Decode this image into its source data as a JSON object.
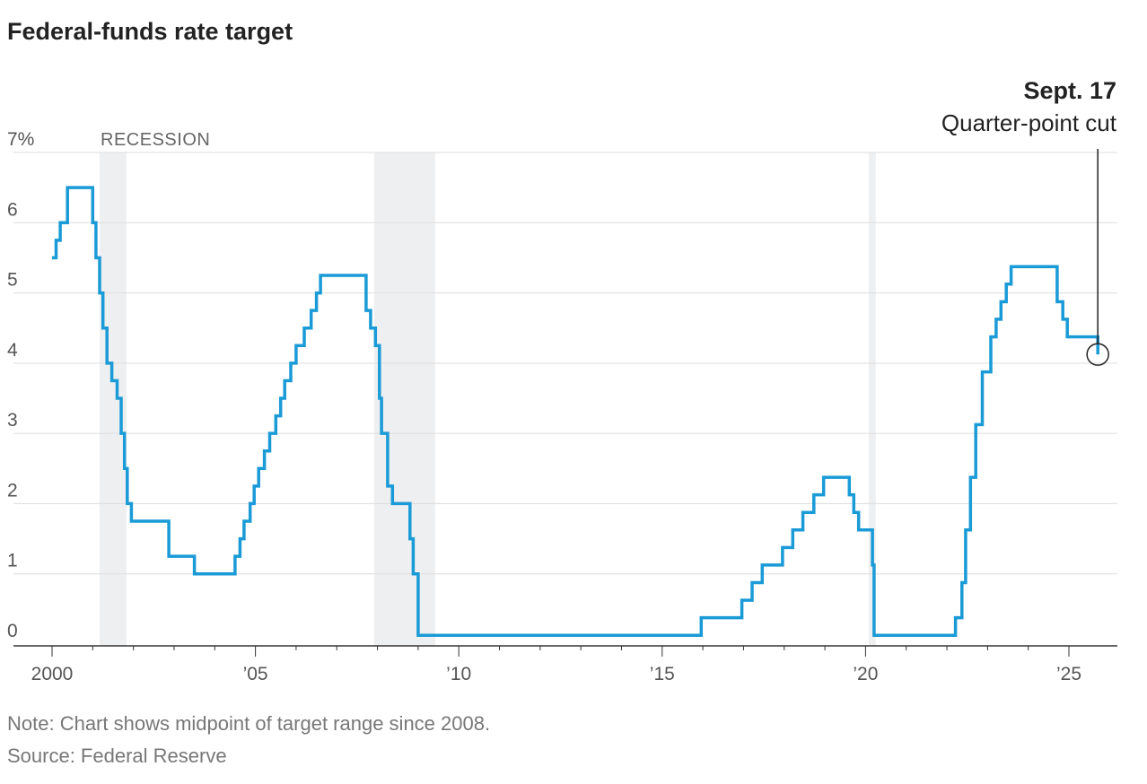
{
  "title": "Federal-funds rate target",
  "note": "Note: Chart shows midpoint of target range since 2008.",
  "source": "Source: Federal Reserve",
  "colors": {
    "line": "#1a9bd7",
    "recession": "#eeeff1",
    "grid": "#dddddd",
    "axis": "#333333"
  },
  "chart_data": {
    "type": "line",
    "step": true,
    "title": "Federal-funds rate target",
    "y_unit_label": "7%",
    "ylim": [
      0,
      7
    ],
    "xlim": [
      1999.8,
      2025.95
    ],
    "y_ticks": [
      {
        "value": 0,
        "label": "0"
      },
      {
        "value": 1,
        "label": "1"
      },
      {
        "value": 2,
        "label": "2"
      },
      {
        "value": 3,
        "label": "3"
      },
      {
        "value": 4,
        "label": "4"
      },
      {
        "value": 5,
        "label": "5"
      },
      {
        "value": 6,
        "label": "6"
      },
      {
        "value": 7,
        "label": "7%"
      }
    ],
    "x_ticks": [
      {
        "value": 2000,
        "label": "2000"
      },
      {
        "value": 2005,
        "label": "’05"
      },
      {
        "value": 2010,
        "label": "’10"
      },
      {
        "value": 2015,
        "label": "’15"
      },
      {
        "value": 2020,
        "label": "’20"
      },
      {
        "value": 2025,
        "label": "’25"
      }
    ],
    "recessions": [
      {
        "start": 2001.17,
        "end": 2001.83,
        "label": "RECESSION"
      },
      {
        "start": 2007.92,
        "end": 2009.42,
        "label": ""
      },
      {
        "start": 2020.08,
        "end": 2020.25,
        "label": ""
      }
    ],
    "annotation": {
      "date": "Sept. 17",
      "text": "Quarter-point cut",
      "x": 2025.71,
      "y": 4.125
    },
    "series": [
      {
        "points": [
          [
            2000.0,
            5.5
          ],
          [
            2000.1,
            5.75
          ],
          [
            2000.2,
            6.0
          ],
          [
            2000.38,
            6.5
          ],
          [
            2001.0,
            6.0
          ],
          [
            2001.08,
            5.5
          ],
          [
            2001.17,
            5.0
          ],
          [
            2001.25,
            4.5
          ],
          [
            2001.35,
            4.0
          ],
          [
            2001.47,
            3.75
          ],
          [
            2001.6,
            3.5
          ],
          [
            2001.7,
            3.0
          ],
          [
            2001.78,
            2.5
          ],
          [
            2001.85,
            2.0
          ],
          [
            2001.95,
            1.75
          ],
          [
            2002.87,
            1.25
          ],
          [
            2003.5,
            1.0
          ],
          [
            2004.5,
            1.25
          ],
          [
            2004.62,
            1.5
          ],
          [
            2004.72,
            1.75
          ],
          [
            2004.87,
            2.0
          ],
          [
            2004.97,
            2.25
          ],
          [
            2005.08,
            2.5
          ],
          [
            2005.22,
            2.75
          ],
          [
            2005.35,
            3.0
          ],
          [
            2005.5,
            3.25
          ],
          [
            2005.62,
            3.5
          ],
          [
            2005.72,
            3.75
          ],
          [
            2005.87,
            4.0
          ],
          [
            2006.0,
            4.25
          ],
          [
            2006.2,
            4.5
          ],
          [
            2006.37,
            4.75
          ],
          [
            2006.5,
            5.0
          ],
          [
            2006.6,
            5.25
          ],
          [
            2007.72,
            4.75
          ],
          [
            2007.83,
            4.5
          ],
          [
            2007.95,
            4.25
          ],
          [
            2008.05,
            3.5
          ],
          [
            2008.1,
            3.0
          ],
          [
            2008.25,
            2.25
          ],
          [
            2008.37,
            2.0
          ],
          [
            2008.8,
            1.5
          ],
          [
            2008.88,
            1.0
          ],
          [
            2009.0,
            0.125
          ],
          [
            2015.96,
            0.375
          ],
          [
            2016.96,
            0.625
          ],
          [
            2017.21,
            0.875
          ],
          [
            2017.46,
            1.125
          ],
          [
            2017.96,
            1.375
          ],
          [
            2018.21,
            1.625
          ],
          [
            2018.46,
            1.875
          ],
          [
            2018.73,
            2.125
          ],
          [
            2018.97,
            2.375
          ],
          [
            2019.6,
            2.125
          ],
          [
            2019.71,
            1.875
          ],
          [
            2019.83,
            1.625
          ],
          [
            2020.17,
            1.125
          ],
          [
            2020.21,
            0.125
          ],
          [
            2022.21,
            0.375
          ],
          [
            2022.37,
            0.875
          ],
          [
            2022.46,
            1.625
          ],
          [
            2022.58,
            2.375
          ],
          [
            2022.71,
            3.125
          ],
          [
            2022.87,
            3.875
          ],
          [
            2023.08,
            4.375
          ],
          [
            2023.21,
            4.625
          ],
          [
            2023.33,
            4.875
          ],
          [
            2023.46,
            5.125
          ],
          [
            2023.58,
            5.375
          ],
          [
            2024.71,
            4.875
          ],
          [
            2024.85,
            4.625
          ],
          [
            2024.96,
            4.375
          ],
          [
            2025.71,
            4.125
          ]
        ],
        "end_x": 2025.71
      }
    ]
  }
}
